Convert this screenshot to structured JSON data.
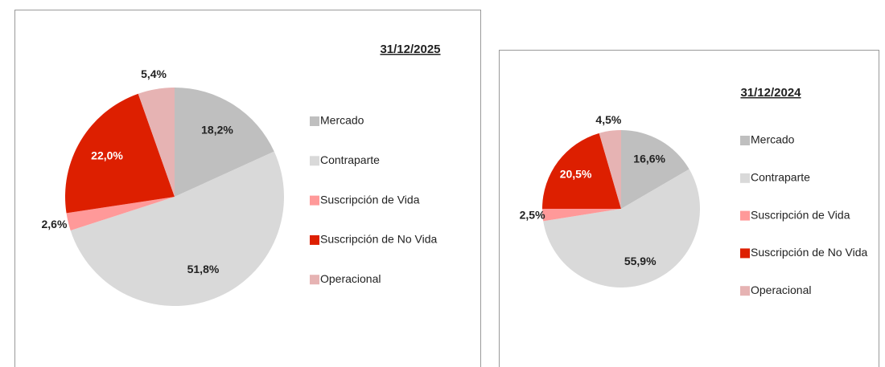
{
  "chart_data": [
    {
      "type": "pie",
      "title": "31/12/2025",
      "categories": [
        "Mercado",
        "Contraparte",
        "Suscripción de Vida",
        "Suscripción de No Vida",
        "Operacional"
      ],
      "values": [
        18.2,
        51.8,
        2.6,
        22.0,
        5.4
      ],
      "value_labels": [
        "18,2%",
        "51,8%",
        "2,6%",
        "22,0%",
        "5,4%"
      ],
      "colors": [
        "#bfbfbf",
        "#d9d9d9",
        "#ff9999",
        "#dd1f00",
        "#e6b3b3"
      ]
    },
    {
      "type": "pie",
      "title": "31/12/2024",
      "categories": [
        "Mercado",
        "Contraparte",
        "Suscripción de Vida",
        "Suscripción de No Vida",
        "Operacional"
      ],
      "values": [
        16.6,
        55.9,
        2.5,
        20.5,
        4.5
      ],
      "value_labels": [
        "16,6%",
        "55,9%",
        "2,5%",
        "20,5%",
        "4,5%"
      ],
      "colors": [
        "#bfbfbf",
        "#d9d9d9",
        "#ff9999",
        "#dd1f00",
        "#e6b3b3"
      ]
    }
  ]
}
